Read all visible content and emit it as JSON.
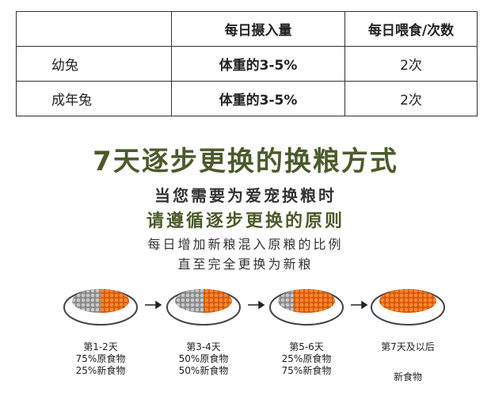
{
  "table": {
    "header": [
      "",
      "每日摄入量",
      "每日喂食/次数"
    ],
    "rows": [
      [
        "幼兔",
        "体重的3-5%",
        "2次"
      ],
      [
        "成年兔",
        "体重的3-5%",
        "2次"
      ]
    ]
  },
  "title": "7天逐步更换的换粮方式",
  "lines": [
    "当您需要为爱宠换粮时",
    "请遵循逐步更换的原则",
    "每日增加新粮混入原粮的比例",
    "直至完全更换为新粮"
  ],
  "steps": [
    {
      "label": "第1-2天",
      "old": "75%原食物",
      "new": "25%新食物"
    },
    {
      "label": "第3-4天",
      "old": "50%原食物",
      "new": "50%新食物"
    },
    {
      "label": "第5-6天",
      "old": "25%原食物",
      "new": "75%新食物"
    },
    {
      "label": "第7天及以后",
      "new": "新食物"
    }
  ]
}
